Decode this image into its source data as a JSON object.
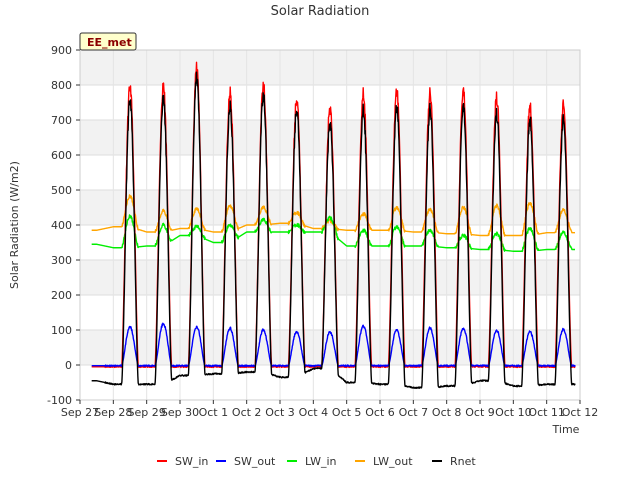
{
  "chart_data": {
    "type": "line",
    "title": "Solar Radiation",
    "xlabel": "Time",
    "ylabel": "Solar Radiation (W/m2)",
    "station_label": "EE_met",
    "ylim": [
      -100,
      900
    ],
    "yticks": [
      -100,
      0,
      100,
      200,
      300,
      400,
      500,
      600,
      700,
      800,
      900
    ],
    "xlim": [
      0,
      15
    ],
    "x_unit": "days since Sep 27",
    "xtick_labels": [
      "Sep 27",
      "Sep 28",
      "Sep 29",
      "Sep 30",
      "Oct 1",
      "Oct 2",
      "Oct 3",
      "Oct 4",
      "Oct 5",
      "Oct 6",
      "Oct 7",
      "Oct 8",
      "Oct 9",
      "Oct 10",
      "Oct 11",
      "Oct 12"
    ],
    "grid": true,
    "legend_position": "bottom",
    "daily_peaks": {
      "days": [
        "Sep 28",
        "Sep 29",
        "Sep 30",
        "Oct 1",
        "Oct 2",
        "Oct 3",
        "Oct 4",
        "Oct 5",
        "Oct 6",
        "Oct 7",
        "Oct 8",
        "Oct 9",
        "Oct 10",
        "Oct 11"
      ],
      "SW_in": [
        800,
        795,
        848,
        780,
        800,
        760,
        735,
        775,
        785,
        775,
        785,
        765,
        740,
        740
      ],
      "SW_out": [
        108,
        118,
        110,
        105,
        100,
        95,
        95,
        112,
        100,
        105,
        105,
        98,
        95,
        102
      ],
      "LW_in": [
        425,
        400,
        395,
        400,
        415,
        400,
        420,
        385,
        395,
        385,
        370,
        375,
        390,
        378
      ],
      "LW_out": [
        482,
        440,
        445,
        455,
        450,
        435,
        412,
        432,
        450,
        445,
        450,
        455,
        462,
        442
      ],
      "Rnet": [
        760,
        760,
        820,
        740,
        770,
        730,
        690,
        728,
        738,
        730,
        740,
        718,
        700,
        698
      ]
    },
    "night_values": {
      "SW_in": [
        -5,
        -5,
        -5,
        -5,
        -5,
        -5,
        -5,
        -5,
        -5,
        -5,
        -5,
        -5,
        -5,
        -5,
        -5
      ],
      "SW_out": [
        -2,
        -2,
        -2,
        -2,
        -2,
        -2,
        -2,
        -2,
        -2,
        -2,
        -2,
        -2,
        -2,
        -2,
        -2
      ],
      "LW_in": [
        345,
        335,
        340,
        370,
        350,
        380,
        380,
        380,
        340,
        340,
        340,
        335,
        330,
        325,
        330
      ],
      "LW_out": [
        385,
        395,
        380,
        390,
        380,
        400,
        405,
        390,
        385,
        385,
        380,
        375,
        370,
        370,
        378
      ],
      "Rnet": [
        -45,
        -55,
        -55,
        -30,
        -25,
        -20,
        -35,
        -10,
        -50,
        -55,
        -65,
        -60,
        -45,
        -60,
        -55
      ]
    },
    "series": [
      {
        "name": "SW_in",
        "color": "#ff0000"
      },
      {
        "name": "SW_out",
        "color": "#0000ff"
      },
      {
        "name": "LW_in",
        "color": "#00ee00"
      },
      {
        "name": "LW_out",
        "color": "#ffa500"
      },
      {
        "name": "Rnet",
        "color": "#000000"
      }
    ]
  }
}
